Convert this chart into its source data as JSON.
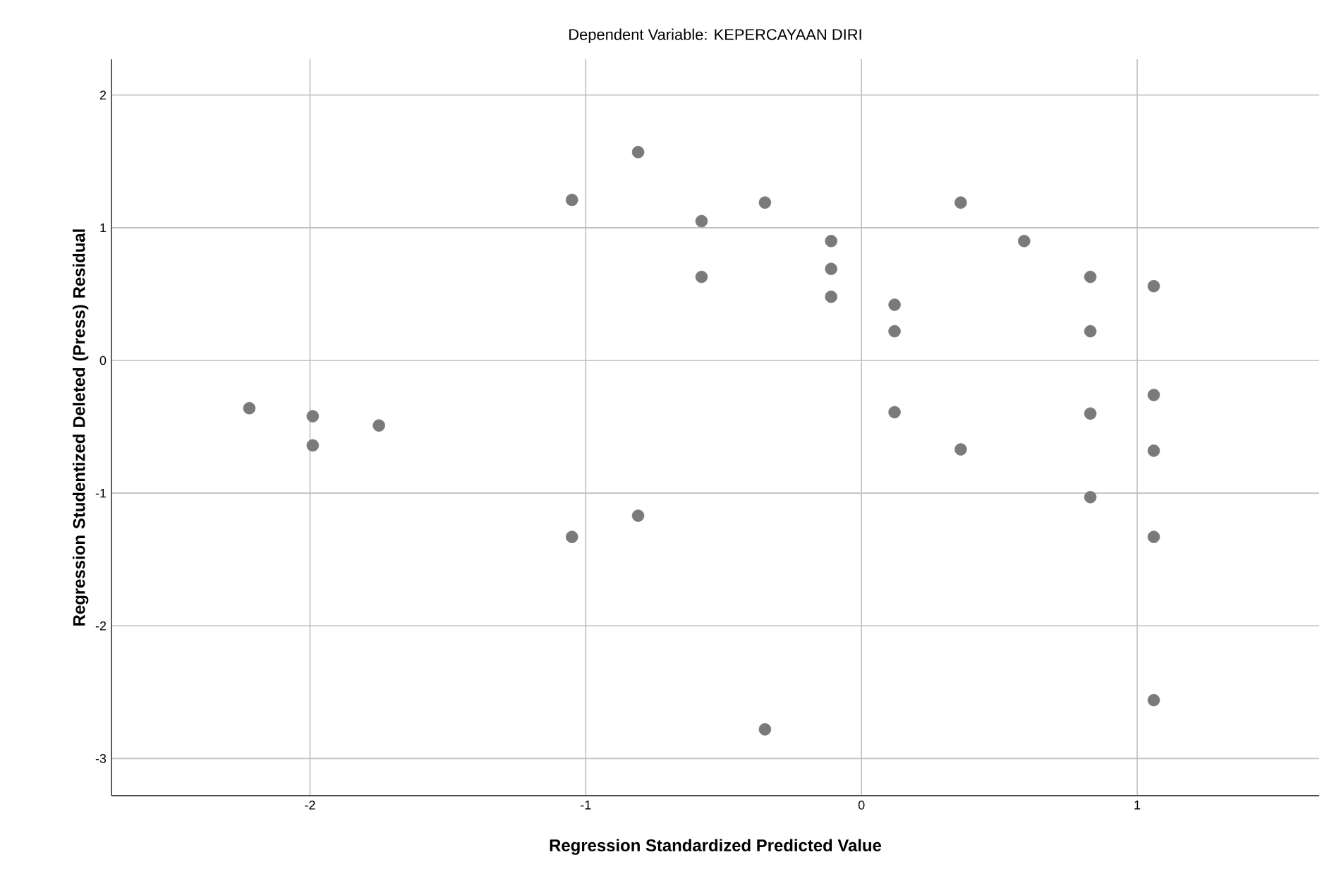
{
  "chart_data": {
    "type": "scatter",
    "title": "Dependent Variable: KEPERCAYAAN DIRI",
    "xlabel": "Regression Standardized Predicted Value",
    "ylabel": "Regression Studentized Deleted (Press) Residual",
    "xlim": [
      -2.72,
      1.66
    ],
    "ylim": [
      -3.28,
      2.27
    ],
    "xticks": [
      -2,
      -1,
      0,
      1
    ],
    "yticks": [
      -3,
      -2,
      -1,
      0,
      1,
      2
    ],
    "grid": true,
    "marker": "circle",
    "series": [
      {
        "color": "#7a7a7a",
        "x": [
          -2.22,
          -1.99,
          -1.99,
          -1.75,
          -1.05,
          -0.81,
          -0.58,
          -0.58,
          -0.35,
          -0.11,
          -0.11,
          -0.11,
          0.12,
          0.12,
          0.36,
          0.59,
          0.83,
          0.83,
          1.06,
          0.12,
          0.36,
          0.83,
          1.06,
          1.06,
          -1.05,
          -0.81,
          0.83,
          1.06,
          1.06,
          -0.35
        ],
        "values": [
          -0.36,
          -0.42,
          -0.64,
          -0.49,
          1.21,
          1.57,
          1.05,
          0.63,
          1.19,
          0.9,
          0.69,
          0.48,
          0.42,
          0.22,
          1.19,
          0.9,
          0.63,
          0.22,
          0.56,
          -0.39,
          -0.67,
          -0.4,
          -0.26,
          -0.68,
          -1.33,
          -1.17,
          -1.03,
          -1.33,
          -2.56,
          -2.78
        ]
      }
    ]
  }
}
